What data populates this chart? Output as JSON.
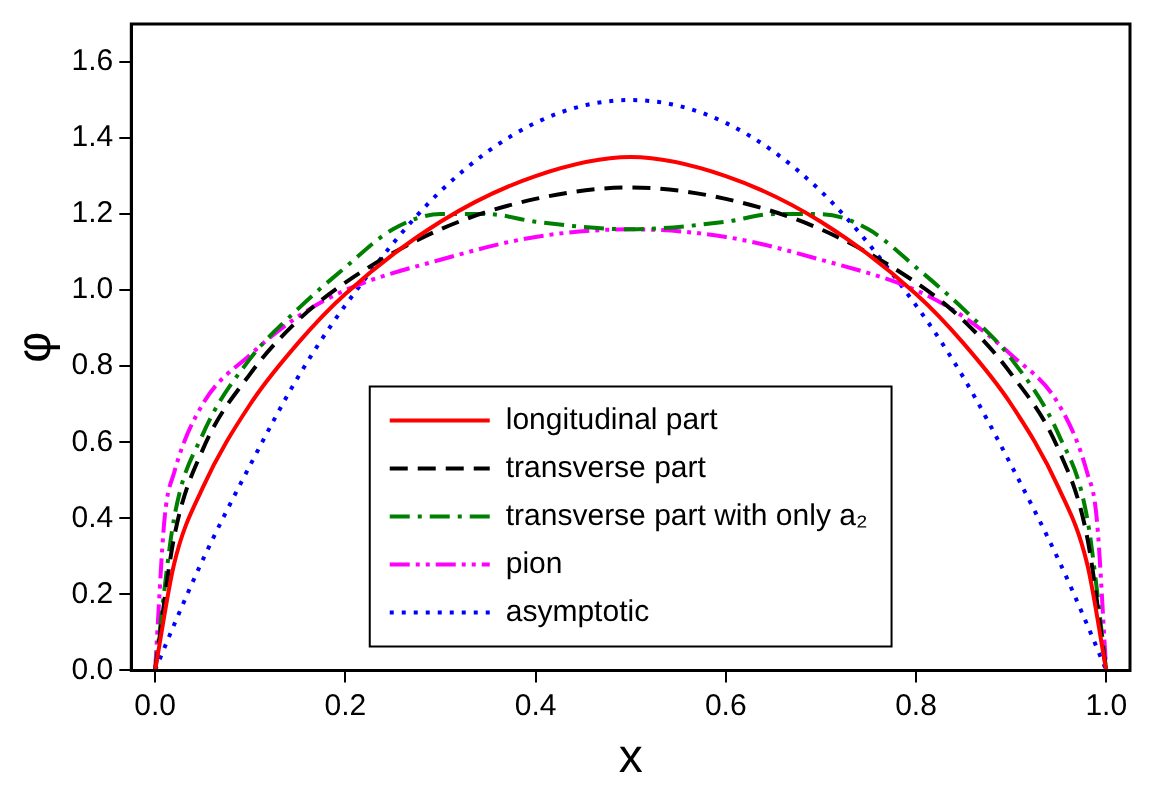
{
  "chart_data": {
    "type": "line",
    "xlabel": "x",
    "ylabel": "φ",
    "xlim": [
      -0.025,
      1.025
    ],
    "ylim": [
      0,
      1.7
    ],
    "xticks": [
      {
        "value": 0,
        "label": "0.0"
      },
      {
        "value": 0.2,
        "label": "0.2"
      },
      {
        "value": 0.4,
        "label": "0.4"
      },
      {
        "value": 0.6,
        "label": "0.6"
      },
      {
        "value": 0.8,
        "label": "0.8"
      },
      {
        "value": 1,
        "label": "1.0"
      }
    ],
    "yticks": [
      {
        "value": 0,
        "label": "0.0"
      },
      {
        "value": 0.2,
        "label": "0.2"
      },
      {
        "value": 0.4,
        "label": "0.4"
      },
      {
        "value": 0.6,
        "label": "0.6"
      },
      {
        "value": 0.8,
        "label": "0.8"
      },
      {
        "value": 1,
        "label": "1.0"
      },
      {
        "value": 1.2,
        "label": "1.2"
      },
      {
        "value": 1.4,
        "label": "1.4"
      },
      {
        "value": 1.6,
        "label": "1.6"
      }
    ],
    "grid": false,
    "legend": "bottom",
    "marker": "none",
    "series": [
      {
        "name": "longitudinal part",
        "color": "#ff0000",
        "line_style": "solid",
        "x": [
          0,
          0.02,
          0.05,
          0.1,
          0.15,
          0.2,
          0.3,
          0.4,
          0.5,
          0.6,
          0.7,
          0.8,
          0.85,
          0.9,
          0.95,
          0.98,
          1
        ],
        "values": [
          0,
          0.28,
          0.48,
          0.7,
          0.86,
          0.99,
          1.18,
          1.3,
          1.35,
          1.3,
          1.18,
          0.99,
          0.86,
          0.7,
          0.48,
          0.28,
          0
        ]
      },
      {
        "name": "transverse part",
        "color": "#000000",
        "line_style": "dashed",
        "x": [
          0,
          0.02,
          0.05,
          0.1,
          0.15,
          0.2,
          0.3,
          0.4,
          0.5,
          0.6,
          0.7,
          0.8,
          0.85,
          0.9,
          0.95,
          0.98,
          1
        ],
        "values": [
          0,
          0.35,
          0.58,
          0.78,
          0.92,
          1.02,
          1.16,
          1.24,
          1.27,
          1.24,
          1.16,
          1.02,
          0.92,
          0.78,
          0.58,
          0.35,
          0
        ]
      },
      {
        "name": "transverse part with only a₂",
        "color": "#008000",
        "line_style": "dashdot",
        "x": [
          0,
          0.02,
          0.05,
          0.1,
          0.15,
          0.2,
          0.25,
          0.3,
          0.35,
          0.4,
          0.5,
          0.6,
          0.65,
          0.7,
          0.75,
          0.8,
          0.85,
          0.9,
          0.95,
          0.98,
          1
        ],
        "values": [
          0,
          0.4,
          0.62,
          0.82,
          0.95,
          1.06,
          1.16,
          1.2,
          1.2,
          1.18,
          1.16,
          1.18,
          1.2,
          1.2,
          1.16,
          1.06,
          0.95,
          0.82,
          0.62,
          0.4,
          0
        ]
      },
      {
        "name": "pion",
        "color": "#ff00ff",
        "line_style": "dashdotdot",
        "x": [
          0,
          0.01,
          0.02,
          0.05,
          0.1,
          0.15,
          0.2,
          0.3,
          0.4,
          0.5,
          0.6,
          0.7,
          0.8,
          0.85,
          0.9,
          0.95,
          0.98,
          0.99,
          1
        ],
        "values": [
          0,
          0.4,
          0.52,
          0.7,
          0.83,
          0.93,
          1,
          1.08,
          1.14,
          1.16,
          1.14,
          1.08,
          1,
          0.93,
          0.83,
          0.7,
          0.52,
          0.4,
          0
        ]
      },
      {
        "name": "asymptotic",
        "color": "#0000ff",
        "line_style": "dotted",
        "x": [
          0,
          0.02,
          0.05,
          0.1,
          0.15,
          0.2,
          0.3,
          0.4,
          0.5,
          0.6,
          0.7,
          0.8,
          0.85,
          0.9,
          0.95,
          0.98,
          1
        ],
        "values": [
          0,
          0.12,
          0.29,
          0.54,
          0.77,
          0.96,
          1.26,
          1.44,
          1.5,
          1.44,
          1.26,
          0.96,
          0.77,
          0.54,
          0.29,
          0.12,
          0
        ]
      }
    ]
  }
}
